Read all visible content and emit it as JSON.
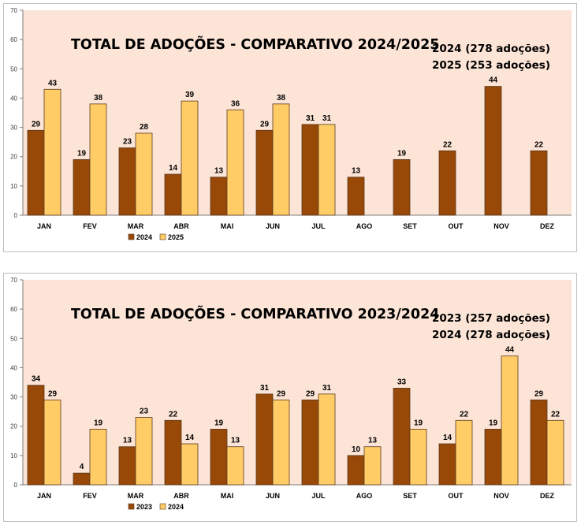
{
  "chart_data": [
    {
      "type": "bar",
      "title": "TOTAL DE ADOÇÕES - COMPARATIVO 2024/2025",
      "notes": [
        "2024 (278 adoções)",
        "2025 (253 adoções)"
      ],
      "categories": [
        "JAN",
        "FEV",
        "MAR",
        "ABR",
        "MAI",
        "JUN",
        "JUL",
        "AGO",
        "SET",
        "OUT",
        "NOV",
        "DEZ"
      ],
      "series": [
        {
          "name": "2024",
          "color": "#984807",
          "values": [
            29,
            19,
            23,
            14,
            13,
            29,
            31,
            13,
            19,
            22,
            44,
            22
          ]
        },
        {
          "name": "2025",
          "color": "#FFCC66",
          "values": [
            43,
            38,
            28,
            39,
            36,
            38,
            31,
            null,
            null,
            null,
            null,
            null
          ]
        }
      ],
      "yticks": [
        "0",
        "10",
        "20",
        "30",
        "40",
        "50",
        "60",
        "70"
      ],
      "ylim": [
        0,
        70
      ],
      "plot_background": "#FCE4D6",
      "legend_position": "bottom-left",
      "grid": false
    },
    {
      "type": "bar",
      "title": "TOTAL DE ADOÇÕES - COMPARATIVO 2023/2024",
      "notes": [
        "2023 (257 adoções)",
        "2024 (278 adoções)"
      ],
      "categories": [
        "JAN",
        "FEV",
        "MAR",
        "ABR",
        "MAI",
        "JUN",
        "JUL",
        "AGO",
        "SET",
        "OUT",
        "NOV",
        "DEZ"
      ],
      "series": [
        {
          "name": "2023",
          "color": "#984807",
          "values": [
            34,
            4,
            13,
            22,
            19,
            31,
            29,
            10,
            33,
            14,
            19,
            29
          ]
        },
        {
          "name": "2024",
          "color": "#FFCC66",
          "values": [
            29,
            19,
            23,
            14,
            13,
            29,
            31,
            13,
            19,
            22,
            44,
            22
          ]
        }
      ],
      "yticks": [
        "0",
        "10",
        "20",
        "30",
        "40",
        "50",
        "60",
        "70"
      ],
      "ylim": [
        0,
        70
      ],
      "plot_background": "#FCE4D6",
      "legend_position": "bottom-left",
      "grid": false
    }
  ]
}
